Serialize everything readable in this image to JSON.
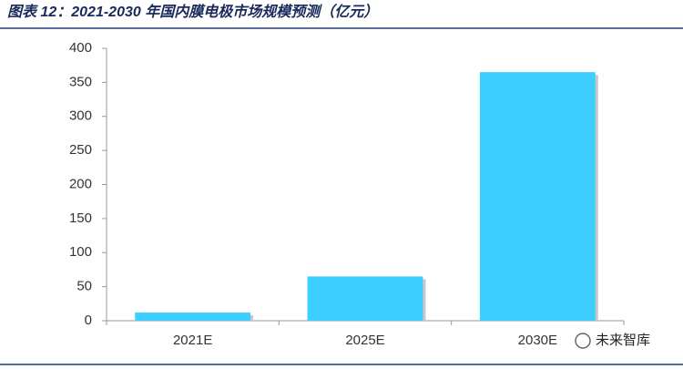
{
  "chart_data": {
    "type": "bar",
    "title": "图表 12：2021-2030 年国内膜电极市场规模预测（亿元）",
    "categories": [
      "2021E",
      "2025E",
      "2030E"
    ],
    "values": [
      12,
      65,
      365
    ],
    "color": "#3ccfff",
    "ylim": [
      0,
      400
    ],
    "yticks": [
      0,
      50,
      100,
      150,
      200,
      250,
      300,
      350,
      400
    ],
    "grid": false,
    "watermark": "未来智库"
  }
}
